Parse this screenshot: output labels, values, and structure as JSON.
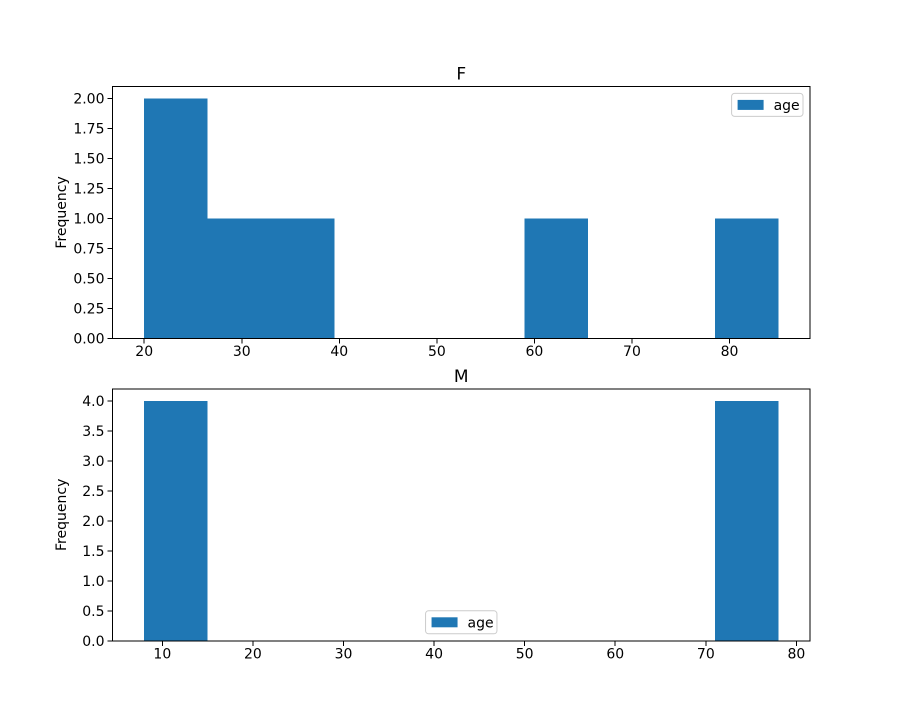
{
  "figure": {
    "background": "#ffffff",
    "bar_color": "#1f77b4",
    "spine_color": "#000000",
    "legend_edge_color": "#cccccc"
  },
  "chart_data": [
    {
      "type": "bar",
      "subtype": "histogram",
      "title": "F",
      "xlabel": "",
      "ylabel": "Frequency",
      "series": [
        {
          "name": "age",
          "bin_edges": [
            20,
            26.5,
            33,
            39.5,
            46,
            52.5,
            59,
            65.5,
            72,
            78.5,
            85
          ],
          "counts": [
            2,
            1,
            1,
            0,
            0,
            0,
            1,
            0,
            0,
            1
          ]
        }
      ],
      "xlim": [
        16.75,
        88.25
      ],
      "ylim": [
        0,
        2.1
      ],
      "xticks": [
        20,
        30,
        40,
        50,
        60,
        70,
        80
      ],
      "yticks": [
        0,
        0.25,
        0.5,
        0.75,
        1,
        1.25,
        1.5,
        1.75,
        2
      ],
      "ytick_decimals": 2,
      "grid": false,
      "legend": {
        "label": "age",
        "position": "upper right"
      }
    },
    {
      "type": "bar",
      "subtype": "histogram",
      "title": "M",
      "xlabel": "",
      "ylabel": "Frequency",
      "series": [
        {
          "name": "age",
          "bin_edges": [
            8,
            15,
            22,
            29,
            36,
            43,
            50,
            57,
            64,
            71,
            78
          ],
          "counts": [
            4,
            0,
            0,
            0,
            0,
            0,
            0,
            0,
            0,
            4
          ]
        }
      ],
      "xlim": [
        4.5,
        81.5
      ],
      "ylim": [
        0,
        4.2
      ],
      "xticks": [
        10,
        20,
        30,
        40,
        50,
        60,
        70,
        80
      ],
      "yticks": [
        0,
        0.5,
        1,
        1.5,
        2,
        2.5,
        3,
        3.5,
        4
      ],
      "ytick_decimals": 1,
      "grid": false,
      "legend": {
        "label": "age",
        "position": "lower center"
      }
    }
  ]
}
